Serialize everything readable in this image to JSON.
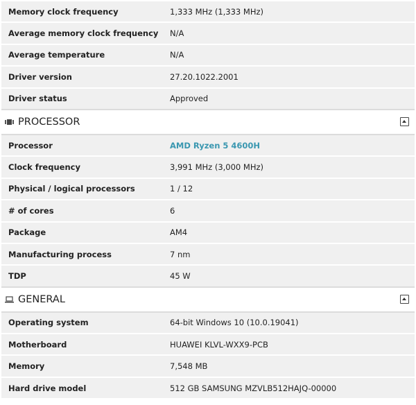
{
  "graphics_rows": [
    {
      "label": "Memory clock frequency",
      "value": "1,333 MHz (1,333 MHz)"
    },
    {
      "label": "Average memory clock frequency",
      "value": "N/A"
    },
    {
      "label": "Average temperature",
      "value": "N/A"
    },
    {
      "label": "Driver version",
      "value": "27.20.1022.2001"
    },
    {
      "label": "Driver status",
      "value": "Approved"
    }
  ],
  "processor": {
    "title": "PROCESSOR",
    "icon": "cpu-icon",
    "rows": [
      {
        "label": "Processor",
        "value": "AMD Ryzen 5 4600H"
      },
      {
        "label": "Clock frequency",
        "value": "3,991 MHz (3,000 MHz)"
      },
      {
        "label": "Physical / logical processors",
        "value": "1 / 12"
      },
      {
        "label": "# of cores",
        "value": "6"
      },
      {
        "label": "Package",
        "value": "AM4"
      },
      {
        "label": "Manufacturing process",
        "value": "7 nm"
      },
      {
        "label": "TDP",
        "value": "45 W"
      }
    ]
  },
  "general": {
    "title": "GENERAL",
    "icon": "laptop-icon",
    "rows": [
      {
        "label": "Operating system",
        "value": "64-bit Windows 10 (10.0.19041)"
      },
      {
        "label": "Motherboard",
        "value": "HUAWEI KLVL-WXX9-PCB"
      },
      {
        "label": "Memory",
        "value": "7,548 MB"
      },
      {
        "label": "Hard drive model",
        "value": "512 GB SAMSUNG MZVLB512HAJQ-00000"
      }
    ]
  },
  "colors": {
    "link": "#3a97b0",
    "row_bg": "#f0f0f0"
  }
}
